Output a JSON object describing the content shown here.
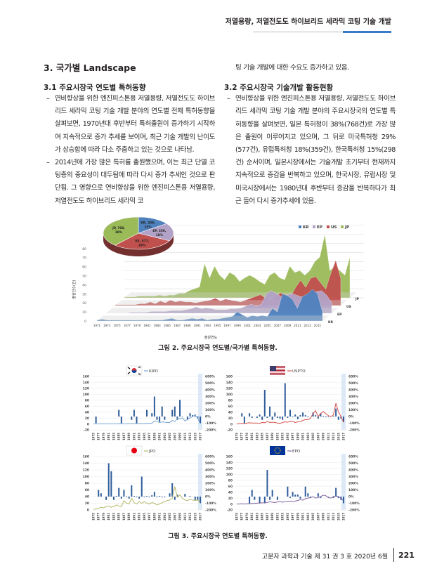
{
  "header": {
    "running_title": "저열용량, 저열전도도 하이브리드 세라믹 코팅 기술 개발"
  },
  "section": {
    "title": "3. 국가별 Landscape"
  },
  "left": {
    "sub_title": "3.1 주요시장국 연도별 특허동향",
    "bullets": [
      "연비향상을 위한 엔진피스톤용 저열용량, 저열전도도 하이브리드 세라믹 코팅 기술 개발 분야의 연도별 전체 특허동향을 살펴보면, 1970년대 후반부터 특허출원이 증가하기 시작하여 지속적으로 증가 추세를 보이며, 최근 기술 개발의 난이도가 상승함에 따라 다소 주춤하고 있는 것으로 나타남.",
      "2014년에 가장 많은 특허를 출원했으며, 이는 최근 단열 코팅층의 중요성이 대두됨에 따라 다시 증가 추세인 것으로 판단됨. 그 영향으로 연비향상을 위한 엔진피스톤용 저열용량, 저열전도도 하이브리드 세라믹 코"
    ]
  },
  "right": {
    "continuation": "팅 기술 개발에 대한 수요도 증가하고 있음.",
    "sub_title": "3.2 주요시장국 기술개발 활동현황",
    "bullets": [
      "연비향상을 위한 엔진피스톤용 저열용량, 저열전도도 하이브리드 세라믹 코팅 기술 개발 분야의 주요시장국의 연도별 특허동향을 살펴보면, 일본 특허청이 38%(768건)로 가장 많은 출원이 이루어지고 있으며, 그 뒤로 미국특허청 29%(577건), 유럽특허청 18%(359건), 한국특허청 15%(298건) 순서이며, 일본시장에서는 기술개발 초기부터 현재까지 지속적으로 증감을 반복하고 있으며, 한국시장, 유럽시장 및 미국시장에서는 1980년대 후반부터 증감을 반복하다가 최근 들어 다시 증가추세에 있음."
    ]
  },
  "figure2": {
    "caption": "그림 2. 주요시장국 연도별/국가별 특허동향.",
    "pie": {
      "slices": [
        {
          "label": "KR, 298,",
          "pct": "15%",
          "value": 298,
          "color": "#4f81bd"
        },
        {
          "label": "EP, 359,",
          "pct": "18%",
          "value": 359,
          "color": "#b3a2c7"
        },
        {
          "label": "US, 577,",
          "pct": "29%",
          "value": 577,
          "color": "#c0504d"
        },
        {
          "label": "JP, 768,",
          "pct": "38%",
          "value": 768,
          "color": "#9bbb59"
        }
      ]
    }
  },
  "chart_data": [
    {
      "type": "area",
      "title": "",
      "xlabel": "출원연도",
      "ylabel": "출원건수(건)",
      "ylim": [
        0,
        80
      ],
      "yticks": [
        "0",
        "10",
        "20",
        "30",
        "40",
        "50",
        "60",
        "70",
        "80"
      ],
      "x_start": 1971,
      "xticks": [
        "1971",
        "1973",
        "1975",
        "1977",
        "1979",
        "1981",
        "1983",
        "1985",
        "1987",
        "1989",
        "1991",
        "1993",
        "1995",
        "1997",
        "1999",
        "2001",
        "2003",
        "2005",
        "2007",
        "2009",
        "2011",
        "2013",
        "2015"
      ],
      "legend": [
        "KR",
        "EP",
        "US",
        "JP"
      ],
      "legend_position": "top-right",
      "series": [
        {
          "name": "KR",
          "color": "#4f81bd",
          "values": [
            1,
            2,
            1,
            1,
            1,
            1,
            1,
            1,
            1,
            1,
            1,
            1,
            1,
            1,
            2,
            3,
            1,
            1,
            2,
            3,
            2,
            3,
            1,
            2,
            2,
            3,
            4,
            5,
            10,
            7,
            4,
            6,
            5,
            6,
            5,
            14,
            10,
            30,
            28,
            24,
            14,
            27,
            30,
            35,
            30,
            10
          ]
        },
        {
          "name": "EP",
          "color": "#b3a2c7",
          "values": [
            0,
            0,
            0,
            0,
            0,
            1,
            1,
            1,
            1,
            2,
            2,
            2,
            2,
            3,
            3,
            3,
            4,
            5,
            7,
            5,
            6,
            5,
            4,
            4,
            4,
            5,
            5,
            6,
            8,
            10,
            8,
            10,
            22,
            25,
            22,
            18,
            20,
            22,
            20,
            18,
            20,
            22,
            24,
            25,
            20,
            12
          ]
        },
        {
          "name": "US",
          "color": "#c0504d",
          "values": [
            1,
            1,
            1,
            1,
            1,
            2,
            2,
            4,
            2,
            5,
            3,
            6,
            4,
            5,
            4,
            4,
            3,
            4,
            5,
            6,
            8,
            5,
            7,
            6,
            5,
            4,
            6,
            8,
            10,
            12,
            8,
            6,
            10,
            14,
            12,
            10,
            20,
            28,
            20,
            30,
            32,
            25,
            18,
            35,
            50,
            30
          ]
        },
        {
          "name": "JP",
          "color": "#9bbb59",
          "values": [
            1,
            1,
            1,
            2,
            2,
            2,
            2,
            3,
            2,
            3,
            3,
            5,
            5,
            8,
            10,
            12,
            38,
            22,
            35,
            25,
            20,
            28,
            25,
            18,
            22,
            25,
            22,
            18,
            15,
            25,
            28,
            22,
            20,
            35,
            28,
            30,
            25,
            30,
            40,
            45,
            70,
            30,
            35,
            30,
            25,
            45
          ]
        }
      ]
    },
    {
      "type": "bar+line",
      "office": "KIPO",
      "line_color": "#7aa6d4",
      "x_start": 1975,
      "ylim": [
        -20,
        160
      ],
      "y2lim": [
        -200,
        600
      ],
      "bars_growth_pct": {
        "1976": -100,
        "1985": 100,
        "1986": -100,
        "1990": -50,
        "1991": 100,
        "1992": -100,
        "1996": 100,
        "1998": 50,
        "1999": 300,
        "2000": -50,
        "2001": -80,
        "2002": 150,
        "2003": -50,
        "2006": 100,
        "2007": 150,
        "2008": -50,
        "2009": 250,
        "2010": 0,
        "2012": -50,
        "2013": 50,
        "2014": 20,
        "2015": 30,
        "2016": -30,
        "2017": -100
      },
      "line_counts": [
        0,
        0,
        0,
        0,
        0,
        0,
        0,
        0,
        0,
        0,
        1,
        1,
        0,
        0,
        1,
        1,
        1,
        1,
        1,
        1,
        1,
        2,
        2,
        3,
        10,
        8,
        5,
        7,
        6,
        5,
        5,
        12,
        8,
        18,
        18,
        20,
        10,
        15,
        20,
        25,
        30,
        20,
        0
      ]
    },
    {
      "type": "bar+line",
      "office": "USPTO",
      "line_color": "#d9534f",
      "x_start": 1975,
      "ylim": [
        -20,
        160
      ],
      "y2lim": [
        -200,
        600
      ],
      "bars_growth_pct": {
        "1977": 50,
        "1978": -100,
        "1980": 50,
        "1981": -20,
        "1983": -20,
        "1984": 30,
        "1985": -50,
        "1986": 400,
        "1987": -20,
        "1988": 150,
        "1989": -50,
        "1990": 60,
        "1991": -20,
        "1992": -30,
        "1993": -50,
        "1994": 500,
        "1995": -20,
        "1996": 100,
        "1997": -10,
        "1998": 30,
        "1999": -40,
        "2000": 20,
        "2001": 60,
        "2002": 20,
        "2003": -10,
        "2005": 60,
        "2006": 20,
        "2007": -30,
        "2008": 50,
        "2009": 10,
        "2010": -10,
        "2011": -10,
        "2013": 10,
        "2014": 120,
        "2015": -50,
        "2016": -30,
        "2017": -80
      },
      "line_counts": [
        0,
        1,
        2,
        1,
        3,
        4,
        3,
        3,
        3,
        2,
        5,
        4,
        8,
        5,
        6,
        5,
        3,
        2,
        5,
        7,
        6,
        8,
        8,
        5,
        7,
        8,
        12,
        15,
        14,
        20,
        35,
        45,
        25,
        35,
        42,
        35,
        28,
        25,
        30,
        70,
        40,
        25,
        5
      ]
    },
    {
      "type": "bar+line",
      "office": "JPO",
      "line_color": "#b5b86a",
      "x_start": 1975,
      "ylim": [
        0,
        160
      ],
      "y2lim": [
        -200,
        600
      ],
      "bars_growth_pct": {
        "1977": 100,
        "1978": 50,
        "1980": -50,
        "1981": 500,
        "1982": 380,
        "1983": -50,
        "1984": 10,
        "1985": 130,
        "1986": -30,
        "1987": 100,
        "1988": -10,
        "1989": -30,
        "1990": 170,
        "1991": 10,
        "1992": -10,
        "1993": -30,
        "1994": 300,
        "1995": -10,
        "1996": 10,
        "1997": -10,
        "1998": 20,
        "1999": 70,
        "2000": -10,
        "2001": 10,
        "2002": -10,
        "2003": -10,
        "2005": 50,
        "2006": 200,
        "2007": -50,
        "2008": 30,
        "2011": 40,
        "2013": 10,
        "2015": -50,
        "2016": -50,
        "2017": -100
      },
      "line_counts": [
        2,
        3,
        5,
        8,
        6,
        10,
        12,
        8,
        10,
        15,
        12,
        10,
        28,
        20,
        18,
        35,
        22,
        18,
        25,
        20,
        25,
        20,
        18,
        22,
        20,
        15,
        18,
        22,
        25,
        28,
        30,
        35,
        70,
        38,
        45,
        35,
        30,
        28,
        32,
        30,
        28,
        30,
        20
      ]
    },
    {
      "type": "bar+line",
      "office": "EPO",
      "line_color": "#8064a2",
      "x_start": 1975,
      "ylim": [
        -20,
        160
      ],
      "y2lim": [
        -200,
        600
      ],
      "bars_growth_pct": {
        "1980": -100,
        "1981": 100,
        "1982": -50,
        "1984": -100,
        "1986": -100,
        "1987": 400,
        "1988": -50,
        "1989": 100,
        "1991": -50,
        "1995": 150,
        "1996": -20,
        "1997": 70,
        "1998": 30,
        "1999": 30,
        "2000": -30,
        "2002": 150,
        "2003": 50,
        "2004": -20,
        "2007": 50,
        "2008": -20,
        "2011": -10,
        "2013": -20,
        "2014": 130,
        "2015": -20,
        "2016": -50,
        "2017": -100
      },
      "line_counts": [
        0,
        0,
        1,
        0,
        1,
        1,
        2,
        2,
        3,
        3,
        4,
        4,
        5,
        8,
        6,
        5,
        7,
        8,
        6,
        8,
        9,
        10,
        8,
        10,
        12,
        15,
        13,
        18,
        20,
        22,
        25,
        20,
        22,
        25,
        30,
        28,
        22,
        20,
        25,
        28,
        25,
        20,
        10
      ]
    }
  ],
  "figure3": {
    "caption": "그림 3. 주요시장국 연도별 특허동향.",
    "left_ticks": [
      "-20",
      "0",
      "20",
      "40",
      "60",
      "80",
      "100",
      "120",
      "140",
      "160"
    ],
    "right_ticks": [
      "-200%",
      "-100%",
      "0%",
      "100%",
      "200%",
      "300%",
      "400%",
      "500%",
      "600%"
    ],
    "year_ticks": [
      "1975",
      "1977",
      "1979",
      "1981",
      "1983",
      "1985",
      "1987",
      "1989",
      "1991",
      "1993",
      "1995",
      "1997",
      "1999",
      "2001",
      "2003",
      "2005",
      "2007",
      "2009",
      "2011",
      "2013",
      "2015",
      "2017"
    ],
    "legends": [
      "KIPO",
      "USPTO",
      "JPO",
      "EPO"
    ]
  },
  "footer": {
    "journal": "고분자 과학과 기술  제 31 권 3 호 2020년 6월",
    "page": "221"
  }
}
